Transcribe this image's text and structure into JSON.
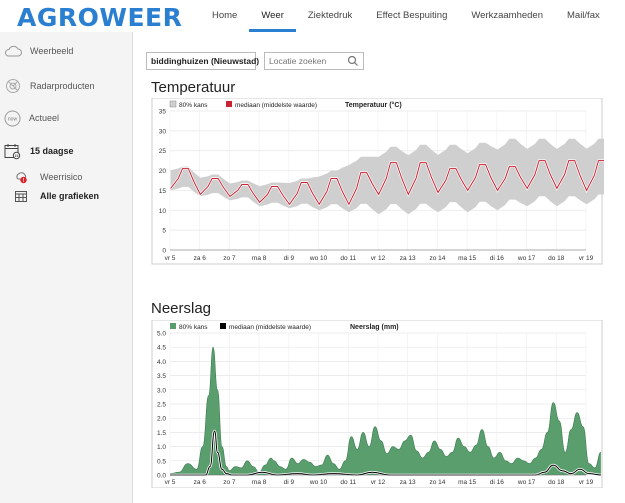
{
  "brand": {
    "logo": "AGROWEER",
    "accent": "#2a7fd0"
  },
  "nav": {
    "items": [
      "Home",
      "Weer",
      "Ziektedruk",
      "Effect Bespuiting",
      "Werkzaamheden",
      "Mail/fax"
    ],
    "active": "Weer"
  },
  "sidebar": {
    "items": [
      {
        "label": "Weerbeeld",
        "icon": "cloud-icon"
      },
      {
        "label": "Radarproducten",
        "icon": "radar-icon"
      },
      {
        "label": "Actueel",
        "icon": "now-icon"
      },
      {
        "label": "15 daagse",
        "icon": "calendar-icon"
      },
      {
        "label": "Weerrisico",
        "icon": "warning-icon"
      },
      {
        "label": "Alle grafieken",
        "icon": "grid-calendar-icon"
      }
    ]
  },
  "location": {
    "current": "biddinghuizen (Nieuwstad)",
    "search_placeholder": "Locatie zoeken"
  },
  "sections": {
    "temperature": "Temperatuur",
    "precipitation": "Neerslag"
  },
  "chart_data": [
    {
      "type": "line",
      "title": "Temperatuur (°C)",
      "legend": [
        "80% kans",
        "mediaan (middelste waarde)"
      ],
      "legend_placement": "top-left",
      "ylim": [
        0,
        35
      ],
      "yticks": [
        0,
        5,
        10,
        15,
        20,
        25,
        30,
        35
      ],
      "x_labels": [
        "vr 5",
        "za 6",
        "zo 7",
        "ma 8",
        "di 9",
        "wo 10",
        "do 11",
        "vr 12",
        "za 13",
        "zo 14",
        "ma 15",
        "di 16",
        "wo 17",
        "do 18",
        "vr 19"
      ],
      "series": [
        {
          "name": "mediaan (middelste waarde)",
          "color": "#cc2233",
          "daily_max": [
            20.5,
            18,
            16.5,
            16,
            17,
            18,
            19.5,
            22,
            22,
            20.5,
            21.5,
            21,
            22.5,
            22.5,
            22.5
          ],
          "daily_min": [
            15.5,
            14,
            13.5,
            12,
            11.5,
            11.5,
            11.5,
            14,
            14,
            14.5,
            15,
            15,
            15.5,
            15.5,
            15
          ]
        },
        {
          "name": "80% kans",
          "color": "#cfcfcf",
          "band_upper": [
            21,
            19,
            17.5,
            17,
            18,
            20,
            23.5,
            26,
            26.5,
            26.5,
            27,
            28,
            28,
            28,
            28
          ],
          "band_lower": [
            15,
            13.5,
            12.5,
            11,
            10.5,
            10,
            9.5,
            9,
            9,
            9.5,
            9.5,
            10,
            11,
            11,
            11.5
          ]
        }
      ]
    },
    {
      "type": "area",
      "title": "Neerslag (mm)",
      "legend": [
        "80% kans",
        "mediaan (middelste waarde)"
      ],
      "legend_placement": "top-left",
      "ylim": [
        0,
        5
      ],
      "yticks": [
        0,
        0.5,
        1,
        1.5,
        2,
        2.5,
        3,
        3.5,
        4,
        4.5,
        5
      ],
      "x_labels": [
        "vr 5",
        "za 6",
        "zo 7",
        "ma 8",
        "di 9",
        "wo 10",
        "do 11",
        "vr 12",
        "za 13",
        "zo 14",
        "ma 15",
        "di 16",
        "wo 17",
        "do 18",
        "vr 19"
      ],
      "series": [
        {
          "name": "80% kans",
          "color": "#5a9e6e",
          "x": [
            0,
            0.3,
            0.6,
            0.9,
            1.1,
            1.3,
            1.45,
            1.6,
            1.75,
            1.9,
            2.0,
            2.2,
            2.4,
            2.6,
            2.8,
            3.0,
            3.2,
            3.4,
            3.5,
            3.7,
            3.9,
            4.1,
            4.3,
            4.5,
            4.7,
            4.9,
            5.1,
            5.3,
            5.5,
            5.7,
            5.9,
            6.1,
            6.3,
            6.5,
            6.7,
            6.9,
            7.1,
            7.3,
            7.5,
            7.7,
            7.9,
            8.1,
            8.3,
            8.5,
            8.7,
            8.9,
            9.1,
            9.3,
            9.5,
            9.7,
            9.9,
            10.1,
            10.3,
            10.5,
            10.7,
            10.9,
            11.1,
            11.3,
            11.5,
            11.7,
            11.9,
            12.1,
            12.3,
            12.5,
            12.7,
            12.9,
            13.1,
            13.3,
            13.5,
            13.7,
            13.9,
            14.1,
            14.3,
            14.5
          ],
          "values": [
            0.05,
            0.1,
            0.4,
            0.2,
            1.0,
            2.8,
            4.5,
            3.0,
            1.0,
            0.3,
            0.15,
            0.3,
            0.25,
            0.5,
            0.3,
            0.1,
            0.35,
            0.6,
            0.5,
            0.3,
            0.2,
            0.6,
            0.4,
            0.55,
            0.45,
            0.3,
            0.35,
            0.7,
            0.4,
            0.2,
            0.5,
            1.35,
            0.9,
            1.5,
            1.0,
            1.7,
            1.2,
            0.75,
            1.0,
            0.9,
            1.2,
            1.4,
            0.85,
            0.6,
            0.8,
            1.2,
            0.9,
            0.65,
            0.8,
            1.3,
            1.0,
            0.8,
            1.05,
            1.6,
            1.0,
            0.6,
            0.8,
            0.5,
            0.4,
            0.6,
            0.5,
            0.4,
            0.6,
            0.9,
            1.5,
            2.55,
            1.9,
            0.8,
            1.6,
            2.2,
            1.7,
            0.4,
            0.25,
            0.8
          ]
        },
        {
          "name": "mediaan (middelste waarde)",
          "color": "#000000",
          "x": [
            0,
            1.2,
            1.35,
            1.5,
            1.6,
            1.75,
            1.9,
            2.1,
            2.6,
            3.1,
            3.6,
            4.3,
            4.8,
            5.5,
            6.3,
            6.8,
            7.4,
            8.3,
            9.3,
            10.3,
            11.3,
            12.3,
            12.6,
            12.9,
            13.2,
            13.5,
            13.8,
            14.1,
            14.5
          ],
          "values": [
            0,
            0,
            0.3,
            1.55,
            0.8,
            0.2,
            0.05,
            0,
            0,
            0.1,
            0,
            0.05,
            0,
            0.05,
            0,
            0.1,
            0,
            0,
            0,
            0,
            0,
            0,
            0.1,
            0.35,
            0.15,
            0.05,
            0.2,
            0.05,
            0
          ]
        }
      ]
    }
  ]
}
